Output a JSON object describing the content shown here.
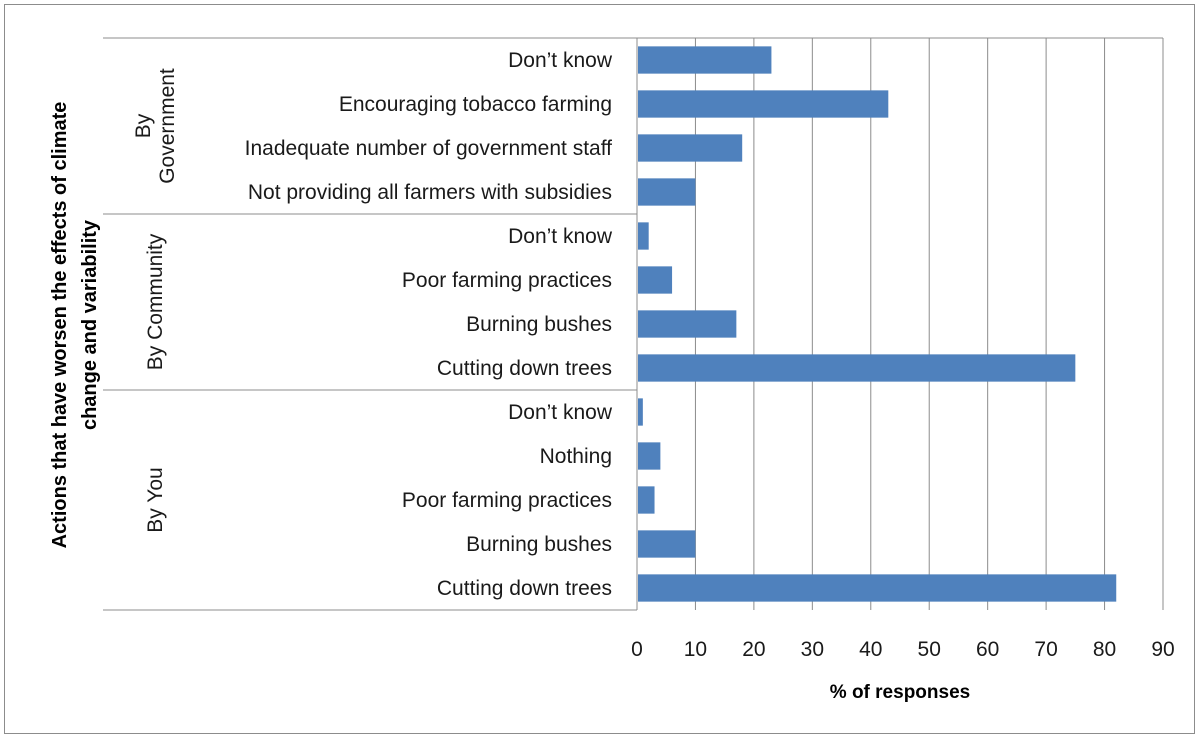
{
  "chart_data": {
    "type": "bar",
    "orientation": "horizontal",
    "xlabel": "% of responses",
    "ylabel_lines": [
      "Actions that have worsen the effects of climate",
      "change and variability"
    ],
    "xlim": [
      0,
      90
    ],
    "xticks": [
      "0",
      "10",
      "20",
      "30",
      "40",
      "50",
      "60",
      "70",
      "80",
      "90"
    ],
    "grid": "vertical",
    "bar_color": "#4f81bd",
    "groups": [
      {
        "label_lines": [
          "By",
          "Government"
        ],
        "categories": [
          "Don’t know",
          "Encouraging tobacco farming",
          "Inadequate number of government staff",
          "Not providing all farmers with subsidies"
        ],
        "values": [
          23,
          43,
          18,
          10
        ]
      },
      {
        "label_lines": [
          "By Community"
        ],
        "categories": [
          "Don’t know",
          "Poor farming practices",
          "Burning bushes",
          "Cutting down trees"
        ],
        "values": [
          2,
          6,
          17,
          75
        ]
      },
      {
        "label_lines": [
          "By You"
        ],
        "categories": [
          "Don’t know",
          "Nothing",
          "Poor farming practices",
          "Burning bushes",
          "Cutting down trees"
        ],
        "values": [
          1,
          4,
          3,
          10,
          82
        ]
      }
    ]
  }
}
